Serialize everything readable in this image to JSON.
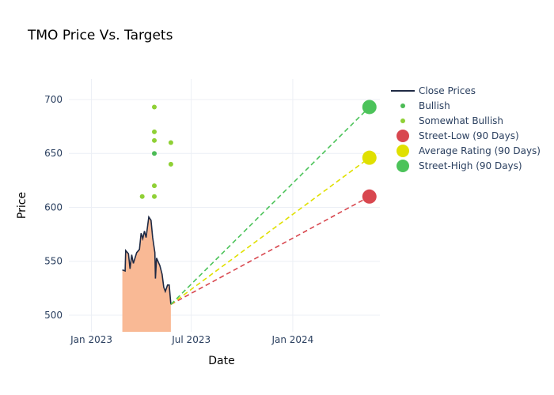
{
  "chart_data": {
    "type": "line",
    "title": "TMO Price Vs. Targets",
    "xlabel": "Date",
    "ylabel": "Price",
    "ylim": [
      484.6,
      719
    ],
    "xlim_dates": [
      "2022-11-21",
      "2024-06-07"
    ],
    "x_ticks": [
      {
        "date": "2023-01-01",
        "label": "Jan 2023"
      },
      {
        "date": "2023-07-01",
        "label": "Jul 2023"
      },
      {
        "date": "2024-01-01",
        "label": "Jan 2024"
      }
    ],
    "y_ticks": [
      500,
      550,
      600,
      650,
      700
    ],
    "grid": true,
    "legend_position": "right",
    "legend": [
      "Close Prices",
      "Bullish",
      "Somewhat Bullish",
      "Street-Low (90 Days)",
      "Average Rating (90 Days)",
      "Street-High (90 Days)"
    ],
    "colors": {
      "line": "#1f2a44",
      "fill": "#f9b995",
      "bullish": "#4cbb55",
      "somewhat": "#8fd035",
      "low": "#d8474f",
      "avg": "#e0e000",
      "high": "#4cc35a",
      "grid": "#eceff5",
      "text": "#2a3f5f"
    },
    "close_prices": [
      [
        "2023-02-26",
        542
      ],
      [
        "2023-03-03",
        541
      ],
      [
        "2023-03-04",
        560
      ],
      [
        "2023-03-09",
        557
      ],
      [
        "2023-03-12",
        543
      ],
      [
        "2023-03-15",
        556
      ],
      [
        "2023-03-18",
        548
      ],
      [
        "2023-03-24",
        558
      ],
      [
        "2023-03-29",
        561
      ],
      [
        "2023-04-01",
        576
      ],
      [
        "2023-04-04",
        571
      ],
      [
        "2023-04-07",
        578
      ],
      [
        "2023-04-10",
        572
      ],
      [
        "2023-04-15",
        591
      ],
      [
        "2023-04-19",
        588
      ],
      [
        "2023-04-22",
        572
      ],
      [
        "2023-04-26",
        558
      ],
      [
        "2023-04-27",
        534
      ],
      [
        "2023-04-29",
        553
      ],
      [
        "2023-05-05",
        546
      ],
      [
        "2023-05-09",
        538
      ],
      [
        "2023-05-12",
        526
      ],
      [
        "2023-05-15",
        522
      ],
      [
        "2023-05-19",
        528
      ],
      [
        "2023-05-22",
        528
      ],
      [
        "2023-05-25",
        510
      ]
    ],
    "bullish": [
      [
        "2023-04-25",
        650
      ]
    ],
    "somewhat_bullish": [
      [
        "2023-04-03",
        610
      ],
      [
        "2023-04-25",
        693
      ],
      [
        "2023-04-25",
        670
      ],
      [
        "2023-04-25",
        662
      ],
      [
        "2023-04-25",
        620
      ],
      [
        "2023-04-25",
        610
      ],
      [
        "2023-05-25",
        660
      ],
      [
        "2023-05-25",
        640
      ]
    ],
    "targets": {
      "start": [
        "2023-05-25",
        510
      ],
      "date": "2024-05-19",
      "low": 610,
      "avg": 646,
      "high": 693
    }
  }
}
